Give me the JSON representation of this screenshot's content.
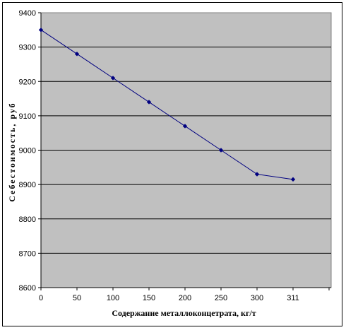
{
  "chart_data": {
    "type": "line",
    "title": "",
    "xlabel": "Содержание металлоконцетрата, кг/т",
    "ylabel": "Себестоимость, руб",
    "categories": [
      "0",
      "50",
      "100",
      "150",
      "200",
      "250",
      "300",
      "311"
    ],
    "series": [
      {
        "values": [
          9350,
          9280,
          9210,
          9140,
          9070,
          9000,
          8930,
          8915
        ]
      }
    ],
    "ylim": [
      8600,
      9400
    ],
    "yticks": [
      "8600",
      "8700",
      "8800",
      "8900",
      "9000",
      "9100",
      "9200",
      "9300",
      "9400"
    ],
    "grid": "horizontal",
    "legend": "none",
    "colors": {
      "plot_background": "#c0c0c0",
      "series_line": "#000080",
      "gridline": "#000000"
    }
  }
}
